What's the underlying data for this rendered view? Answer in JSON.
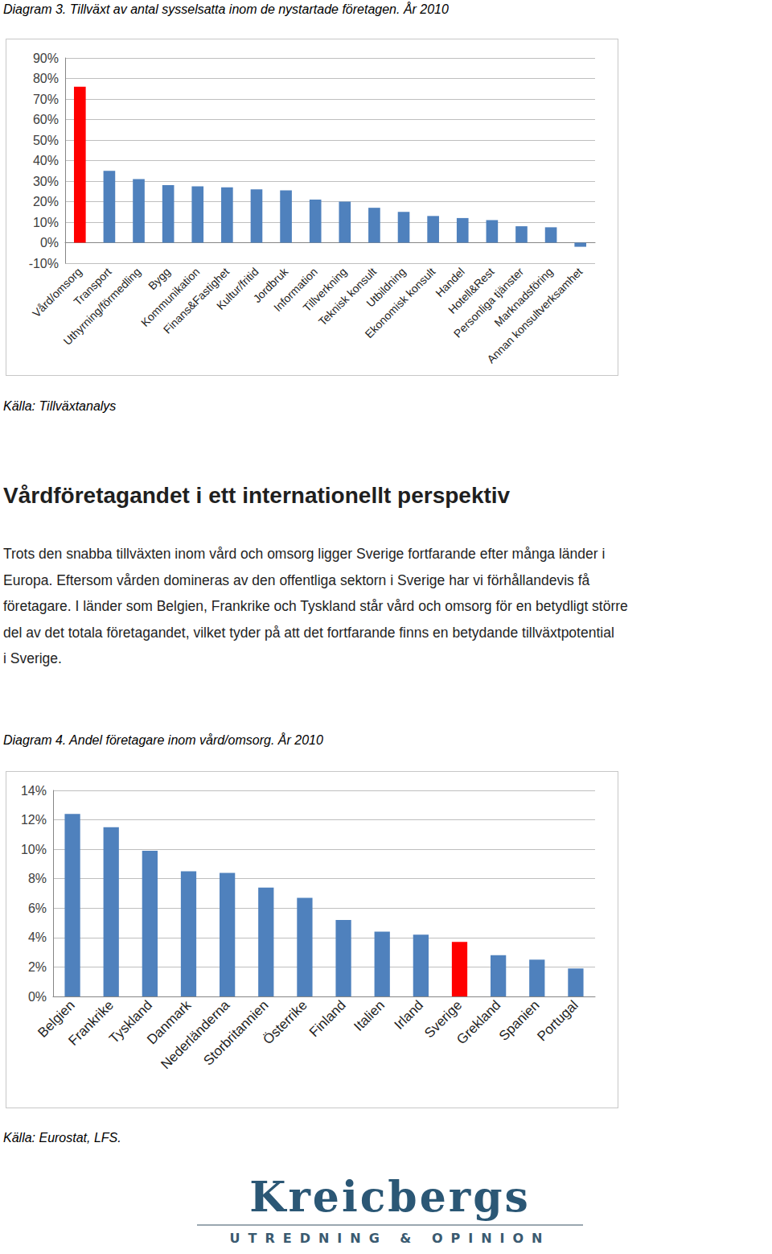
{
  "chart_data": [
    {
      "type": "bar",
      "title": "Diagram 3. Tillväxt av antal sysselsatta inom de nystartade företagen. År 2010",
      "source": "Källa: Tillväxtanalys",
      "categories": [
        "Vård/omsorg",
        "Transport",
        "Uthyrning/förmedling",
        "Bygg",
        "Kommunikation",
        "Finans&Fastighet",
        "Kultur/fritid",
        "Jordbruk",
        "Information",
        "Tillverkning",
        "Teknisk konsult",
        "Utbildning",
        "Ekonomisk konsult",
        "Handel",
        "Hotell&Rest",
        "Personliga tjänster",
        "Marknadsföring",
        "Annan konsultverksamhet"
      ],
      "values": [
        76,
        35,
        31,
        28,
        27.5,
        27,
        26,
        25.5,
        21,
        20,
        17,
        15,
        13,
        12,
        11,
        8,
        7.5,
        -2
      ],
      "colors": [
        "#ff0000",
        "#4f81bd",
        "#4f81bd",
        "#4f81bd",
        "#4f81bd",
        "#4f81bd",
        "#4f81bd",
        "#4f81bd",
        "#4f81bd",
        "#4f81bd",
        "#4f81bd",
        "#4f81bd",
        "#4f81bd",
        "#4f81bd",
        "#4f81bd",
        "#4f81bd",
        "#4f81bd",
        "#4f81bd"
      ],
      "ylim": [
        -10,
        90
      ],
      "yticks": [
        {
          "value": -10,
          "label": "-10%"
        },
        {
          "value": 0,
          "label": "0%"
        },
        {
          "value": 10,
          "label": "10%"
        },
        {
          "value": 20,
          "label": "20%"
        },
        {
          "value": 30,
          "label": "30%"
        },
        {
          "value": 40,
          "label": "40%"
        },
        {
          "value": 50,
          "label": "50%"
        },
        {
          "value": 60,
          "label": "60%"
        },
        {
          "value": 70,
          "label": "70%"
        },
        {
          "value": 80,
          "label": "80%"
        },
        {
          "value": 90,
          "label": "90%"
        }
      ],
      "grid": true
    },
    {
      "type": "bar",
      "title": "Diagram 4. Andel företagare inom vård/omsorg. År 2010",
      "source": "Källa: Eurostat, LFS.",
      "categories": [
        "Belgien",
        "Frankrike",
        "Tyskland",
        "Danmark",
        "Nederländerna",
        "Storbritannien",
        "Österrike",
        "Finland",
        "Italien",
        "Irland",
        "Sverige",
        "Grekland",
        "Spanien",
        "Portugal"
      ],
      "values": [
        12.4,
        11.5,
        9.9,
        8.5,
        8.4,
        7.4,
        6.7,
        5.2,
        4.4,
        4.2,
        3.7,
        2.8,
        2.5,
        1.9
      ],
      "colors": [
        "#4f81bd",
        "#4f81bd",
        "#4f81bd",
        "#4f81bd",
        "#4f81bd",
        "#4f81bd",
        "#4f81bd",
        "#4f81bd",
        "#4f81bd",
        "#4f81bd",
        "#ff0000",
        "#4f81bd",
        "#4f81bd",
        "#4f81bd"
      ],
      "ylim": [
        0,
        14
      ],
      "yticks": [
        {
          "value": 0,
          "label": "0%"
        },
        {
          "value": 2,
          "label": "2%"
        },
        {
          "value": 4,
          "label": "4%"
        },
        {
          "value": 6,
          "label": "6%"
        },
        {
          "value": 8,
          "label": "8%"
        },
        {
          "value": 10,
          "label": "10%"
        },
        {
          "value": 12,
          "label": "12%"
        },
        {
          "value": 14,
          "label": "14%"
        }
      ],
      "grid": true
    }
  ],
  "document": {
    "heading": "Vårdföretagandet i ett internationellt perspektiv",
    "paragraph_lines": [
      "Trots den snabba tillväxten inom vård och omsorg ligger Sverige fortfarande efter många länder i",
      "Europa. Eftersom vården domineras av den offentliga sektorn i Sverige har vi förhållandevis få",
      "företagare. I länder som Belgien, Frankrike och Tyskland står vård och omsorg för en betydligt större",
      "del av det totala företagandet, vilket tyder på att det fortfarande finns en betydande tillväxtpotential",
      "i Sverige."
    ],
    "logo": {
      "name": "Kreicbergs",
      "tagline": "UTREDNING & OPINION"
    }
  }
}
